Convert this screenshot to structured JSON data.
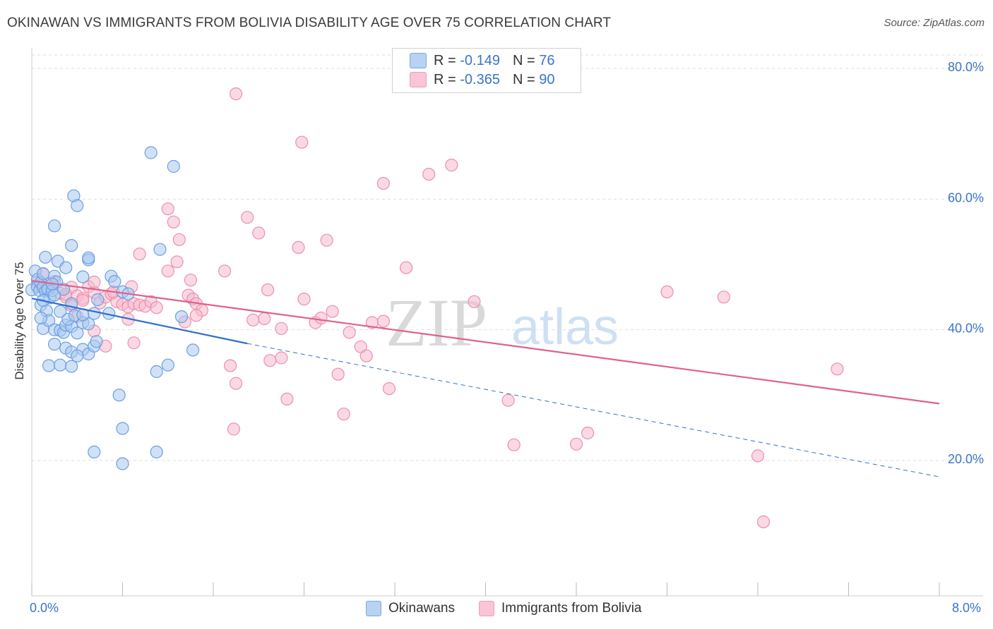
{
  "title": "OKINAWAN VS IMMIGRANTS FROM BOLIVIA DISABILITY AGE OVER 75 CORRELATION CHART",
  "source": "Source: ZipAtlas.com",
  "watermark": {
    "zip": "ZIP",
    "atlas": "atlas"
  },
  "legend": {
    "row1": {
      "r_label": "R =",
      "r_value": "-0.149",
      "n_label": "N =",
      "n_value": "76"
    },
    "row2": {
      "r_label": "R =",
      "r_value": "-0.365",
      "n_label": "N =",
      "n_value": "90"
    }
  },
  "bottom_legend": {
    "series1": "Okinawans",
    "series2": "Immigrants from Bolivia"
  },
  "colors": {
    "blue_fill": "#a9c8f0",
    "blue_stroke": "#6a9fe0",
    "blue_line": "#2f6fcf",
    "pink_fill": "#f6b9cc",
    "pink_stroke": "#ec8fae",
    "pink_line": "#e0608e",
    "tick_text": "#3a74c9",
    "grid": "#dddddd"
  },
  "chart_data": {
    "type": "scatter",
    "title": "OKINAWAN VS IMMIGRANTS FROM BOLIVIA DISABILITY AGE OVER 75 CORRELATION CHART",
    "xlabel": "",
    "ylabel": "Disability Age Over 75",
    "xlim": [
      0,
      8.0
    ],
    "ylim": [
      0,
      82
    ],
    "x_tick_labels": [
      "0.0%",
      "8.0%"
    ],
    "y_ticks": [
      20,
      40,
      60,
      80
    ],
    "y_tick_labels": [
      "20.0%",
      "40.0%",
      "60.0%",
      "80.0%"
    ],
    "grid": true,
    "legend_position": "top-center",
    "series": [
      {
        "name": "Okinawans",
        "R": -0.149,
        "N": 76,
        "trend": {
          "x": [
            0.0,
            1.9
          ],
          "y": [
            44.8,
            37.9
          ],
          "dashed_extension": {
            "x": [
              1.9,
              8.0
            ],
            "y": [
              37.9,
              17.5
            ]
          }
        },
        "points": [
          [
            0.0,
            46.1
          ],
          [
            0.03,
            49.0
          ],
          [
            0.05,
            47.7
          ],
          [
            0.05,
            46.6
          ],
          [
            0.07,
            46.0
          ],
          [
            0.08,
            47.2
          ],
          [
            0.1,
            46.5
          ],
          [
            0.12,
            45.9
          ],
          [
            0.14,
            46.2
          ],
          [
            0.16,
            44.9
          ],
          [
            0.18,
            46.0
          ],
          [
            0.2,
            45.3
          ],
          [
            0.2,
            48.2
          ],
          [
            0.22,
            47.3
          ],
          [
            0.08,
            43.8
          ],
          [
            0.13,
            42.9
          ],
          [
            0.1,
            40.2
          ],
          [
            0.15,
            41.4
          ],
          [
            0.2,
            40.0
          ],
          [
            0.25,
            39.9
          ],
          [
            0.28,
            39.6
          ],
          [
            0.3,
            40.7
          ],
          [
            0.35,
            40.5
          ],
          [
            0.4,
            39.5
          ],
          [
            0.45,
            41.1
          ],
          [
            0.5,
            40.9
          ],
          [
            0.08,
            41.8
          ],
          [
            0.25,
            42.8
          ],
          [
            0.32,
            41.6
          ],
          [
            0.38,
            42.2
          ],
          [
            0.45,
            42.3
          ],
          [
            0.55,
            42.5
          ],
          [
            0.2,
            37.8
          ],
          [
            0.3,
            37.2
          ],
          [
            0.35,
            36.6
          ],
          [
            0.45,
            37.0
          ],
          [
            0.5,
            36.3
          ],
          [
            0.55,
            37.5
          ],
          [
            0.57,
            38.2
          ],
          [
            0.4,
            36.0
          ],
          [
            0.15,
            34.5
          ],
          [
            0.25,
            34.6
          ],
          [
            0.35,
            34.4
          ],
          [
            0.12,
            51.1
          ],
          [
            0.23,
            50.5
          ],
          [
            0.3,
            49.5
          ],
          [
            0.35,
            52.9
          ],
          [
            0.5,
            50.7
          ],
          [
            0.5,
            51.0
          ],
          [
            0.45,
            48.1
          ],
          [
            0.2,
            55.9
          ],
          [
            0.37,
            60.5
          ],
          [
            0.4,
            59.0
          ],
          [
            0.1,
            48.6
          ],
          [
            0.7,
            48.2
          ],
          [
            0.73,
            47.4
          ],
          [
            0.8,
            45.8
          ],
          [
            0.58,
            44.6
          ],
          [
            0.68,
            42.5
          ],
          [
            0.85,
            45.5
          ],
          [
            1.13,
            52.3
          ],
          [
            1.2,
            34.6
          ],
          [
            1.1,
            33.6
          ],
          [
            1.05,
            67.1
          ],
          [
            1.32,
            42.0
          ],
          [
            1.42,
            36.9
          ],
          [
            1.25,
            65.0
          ],
          [
            0.77,
            30.0
          ],
          [
            0.8,
            24.9
          ],
          [
            0.8,
            19.5
          ],
          [
            0.55,
            21.3
          ],
          [
            1.1,
            21.3
          ],
          [
            0.35,
            44.0
          ],
          [
            0.28,
            46.2
          ],
          [
            0.18,
            47.0
          ],
          [
            0.1,
            44.5
          ]
        ]
      },
      {
        "name": "Immigrants from Bolivia",
        "R": -0.365,
        "N": 90,
        "trend": {
          "x": [
            0.0,
            8.0
          ],
          "y": [
            47.5,
            28.7
          ]
        },
        "points": [
          [
            0.05,
            47.3
          ],
          [
            0.1,
            48.5
          ],
          [
            0.15,
            47.0
          ],
          [
            0.2,
            47.4
          ],
          [
            0.25,
            45.6
          ],
          [
            0.3,
            45.0
          ],
          [
            0.35,
            46.5
          ],
          [
            0.4,
            45.2
          ],
          [
            0.45,
            44.8
          ],
          [
            0.5,
            46.6
          ],
          [
            0.55,
            45.7
          ],
          [
            0.6,
            44.1
          ],
          [
            0.65,
            45.0
          ],
          [
            0.7,
            45.5
          ],
          [
            0.75,
            44.3
          ],
          [
            0.8,
            43.9
          ],
          [
            0.85,
            43.5
          ],
          [
            0.9,
            44.0
          ],
          [
            0.95,
            43.8
          ],
          [
            1.0,
            43.6
          ],
          [
            1.05,
            44.3
          ],
          [
            1.1,
            43.4
          ],
          [
            0.35,
            43.7
          ],
          [
            0.55,
            39.8
          ],
          [
            0.65,
            37.5
          ],
          [
            0.85,
            41.6
          ],
          [
            0.9,
            38.0
          ],
          [
            0.4,
            42.0
          ],
          [
            0.15,
            46.2
          ],
          [
            0.3,
            45.4
          ],
          [
            1.2,
            58.5
          ],
          [
            1.25,
            56.5
          ],
          [
            1.3,
            53.8
          ],
          [
            1.28,
            50.4
          ],
          [
            1.2,
            49.0
          ],
          [
            1.4,
            47.6
          ],
          [
            1.38,
            45.3
          ],
          [
            1.42,
            44.7
          ],
          [
            1.45,
            44.0
          ],
          [
            1.5,
            43.0
          ],
          [
            1.35,
            41.2
          ],
          [
            1.45,
            42.2
          ],
          [
            1.7,
            49.0
          ],
          [
            1.75,
            34.5
          ],
          [
            1.8,
            31.8
          ],
          [
            1.78,
            24.8
          ],
          [
            1.9,
            57.2
          ],
          [
            2.0,
            54.8
          ],
          [
            2.05,
            41.7
          ],
          [
            1.95,
            41.5
          ],
          [
            2.1,
            35.3
          ],
          [
            2.2,
            35.7
          ],
          [
            2.25,
            29.4
          ],
          [
            2.2,
            40.2
          ],
          [
            2.08,
            46.1
          ],
          [
            2.35,
            52.6
          ],
          [
            2.38,
            68.7
          ],
          [
            2.4,
            44.7
          ],
          [
            2.5,
            41.1
          ],
          [
            2.55,
            41.8
          ],
          [
            2.6,
            53.7
          ],
          [
            2.65,
            42.8
          ],
          [
            2.7,
            33.2
          ],
          [
            2.75,
            27.1
          ],
          [
            2.8,
            39.6
          ],
          [
            2.9,
            37.4
          ],
          [
            2.95,
            36.0
          ],
          [
            3.0,
            41.1
          ],
          [
            3.1,
            41.3
          ],
          [
            3.1,
            62.4
          ],
          [
            3.15,
            31.0
          ],
          [
            3.3,
            49.5
          ],
          [
            3.5,
            63.8
          ],
          [
            3.7,
            65.2
          ],
          [
            3.9,
            44.3
          ],
          [
            4.2,
            29.2
          ],
          [
            4.25,
            22.4
          ],
          [
            4.8,
            22.5
          ],
          [
            4.9,
            24.2
          ],
          [
            5.6,
            45.8
          ],
          [
            6.1,
            45.0
          ],
          [
            6.4,
            20.7
          ],
          [
            6.45,
            10.6
          ],
          [
            7.1,
            34.0
          ],
          [
            1.8,
            76.1
          ],
          [
            0.95,
            51.6
          ],
          [
            0.88,
            46.6
          ],
          [
            0.72,
            45.8
          ],
          [
            0.55,
            47.3
          ],
          [
            0.45,
            44.5
          ]
        ]
      }
    ]
  }
}
